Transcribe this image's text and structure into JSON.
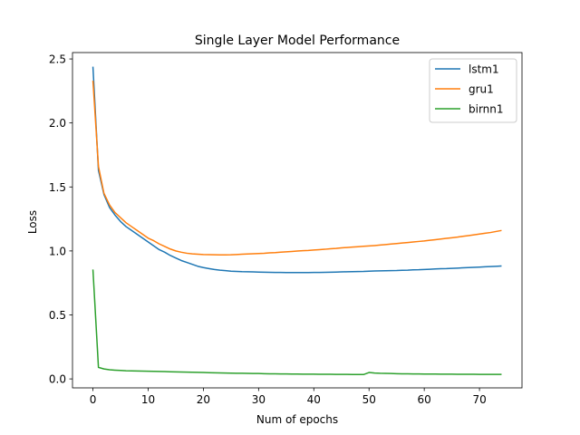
{
  "chart_data": {
    "type": "line",
    "title": "Single Layer Model Performance",
    "xlabel": "Num of epochs",
    "ylabel": "Loss",
    "xlim": [
      -3.7,
      77.7
    ],
    "ylim": [
      -0.07,
      2.55
    ],
    "xticks": [
      0,
      10,
      20,
      30,
      40,
      50,
      60,
      70
    ],
    "xtick_labels": [
      "0",
      "10",
      "20",
      "30",
      "40",
      "50",
      "60",
      "70"
    ],
    "yticks": [
      0.0,
      0.5,
      1.0,
      1.5,
      2.0,
      2.5
    ],
    "ytick_labels": [
      "0.0",
      "0.5",
      "1.0",
      "1.5",
      "2.0",
      "2.5"
    ],
    "grid": false,
    "legend_position": "top-right",
    "series": [
      {
        "name": "lstm1",
        "color": "#1f77b4",
        "x": [
          0,
          1,
          2,
          3,
          4,
          5,
          6,
          7,
          8,
          9,
          10,
          11,
          12,
          13,
          14,
          15,
          16,
          17,
          18,
          19,
          20,
          21,
          22,
          23,
          24,
          25,
          26,
          27,
          28,
          29,
          30,
          31,
          32,
          33,
          34,
          35,
          36,
          37,
          38,
          39,
          40,
          41,
          42,
          43,
          44,
          45,
          46,
          47,
          48,
          49,
          50,
          51,
          52,
          53,
          54,
          55,
          56,
          57,
          58,
          59,
          60,
          61,
          62,
          63,
          64,
          65,
          66,
          67,
          68,
          69,
          70,
          71,
          72,
          73,
          74
        ],
        "y": [
          2.44,
          1.63,
          1.44,
          1.34,
          1.28,
          1.23,
          1.19,
          1.16,
          1.13,
          1.1,
          1.07,
          1.04,
          1.01,
          0.99,
          0.965,
          0.945,
          0.925,
          0.91,
          0.895,
          0.88,
          0.87,
          0.862,
          0.855,
          0.85,
          0.846,
          0.842,
          0.84,
          0.838,
          0.837,
          0.836,
          0.835,
          0.834,
          0.833,
          0.832,
          0.832,
          0.831,
          0.831,
          0.831,
          0.831,
          0.831,
          0.832,
          0.832,
          0.833,
          0.834,
          0.835,
          0.836,
          0.837,
          0.838,
          0.839,
          0.84,
          0.842,
          0.843,
          0.844,
          0.845,
          0.846,
          0.847,
          0.849,
          0.85,
          0.852,
          0.853,
          0.855,
          0.857,
          0.859,
          0.861,
          0.862,
          0.864,
          0.866,
          0.868,
          0.87,
          0.872,
          0.874,
          0.876,
          0.878,
          0.88,
          0.882
        ]
      },
      {
        "name": "gru1",
        "color": "#ff7f0e",
        "x": [
          0,
          1,
          2,
          3,
          4,
          5,
          6,
          7,
          8,
          9,
          10,
          11,
          12,
          13,
          14,
          15,
          16,
          17,
          18,
          19,
          20,
          21,
          22,
          23,
          24,
          25,
          26,
          27,
          28,
          29,
          30,
          31,
          32,
          33,
          34,
          35,
          36,
          37,
          38,
          39,
          40,
          41,
          42,
          43,
          44,
          45,
          46,
          47,
          48,
          49,
          50,
          51,
          52,
          53,
          54,
          55,
          56,
          57,
          58,
          59,
          60,
          61,
          62,
          63,
          64,
          65,
          66,
          67,
          68,
          69,
          70,
          71,
          72,
          73,
          74
        ],
        "y": [
          2.33,
          1.66,
          1.45,
          1.36,
          1.3,
          1.26,
          1.22,
          1.19,
          1.16,
          1.13,
          1.1,
          1.08,
          1.055,
          1.035,
          1.015,
          1.0,
          0.99,
          0.982,
          0.977,
          0.974,
          0.972,
          0.971,
          0.97,
          0.969,
          0.969,
          0.97,
          0.972,
          0.974,
          0.976,
          0.978,
          0.98,
          0.982,
          0.985,
          0.987,
          0.99,
          0.993,
          0.996,
          0.999,
          1.002,
          1.004,
          1.007,
          1.01,
          1.013,
          1.017,
          1.02,
          1.024,
          1.027,
          1.03,
          1.033,
          1.036,
          1.039,
          1.042,
          1.046,
          1.05,
          1.054,
          1.058,
          1.062,
          1.066,
          1.07,
          1.074,
          1.078,
          1.083,
          1.088,
          1.093,
          1.098,
          1.103,
          1.108,
          1.114,
          1.12,
          1.126,
          1.132,
          1.138,
          1.144,
          1.152,
          1.16
        ]
      },
      {
        "name": "birnn1",
        "color": "#2ca02c",
        "x": [
          0,
          1,
          2,
          3,
          4,
          5,
          6,
          7,
          8,
          9,
          10,
          11,
          12,
          13,
          14,
          15,
          16,
          17,
          18,
          19,
          20,
          21,
          22,
          23,
          24,
          25,
          26,
          27,
          28,
          29,
          30,
          31,
          32,
          33,
          34,
          35,
          36,
          37,
          38,
          39,
          40,
          41,
          42,
          43,
          44,
          45,
          46,
          47,
          48,
          49,
          50,
          51,
          52,
          53,
          54,
          55,
          56,
          57,
          58,
          59,
          60,
          61,
          62,
          63,
          64,
          65,
          66,
          67,
          68,
          69,
          70,
          71,
          72,
          73,
          74
        ],
        "y": [
          0.855,
          0.09,
          0.078,
          0.072,
          0.068,
          0.066,
          0.064,
          0.063,
          0.062,
          0.061,
          0.06,
          0.059,
          0.058,
          0.057,
          0.056,
          0.055,
          0.054,
          0.053,
          0.052,
          0.051,
          0.05,
          0.049,
          0.048,
          0.047,
          0.046,
          0.045,
          0.044,
          0.044,
          0.043,
          0.042,
          0.042,
          0.041,
          0.04,
          0.04,
          0.039,
          0.039,
          0.038,
          0.038,
          0.037,
          0.037,
          0.037,
          0.036,
          0.036,
          0.036,
          0.035,
          0.035,
          0.035,
          0.034,
          0.034,
          0.034,
          0.05,
          0.046,
          0.044,
          0.043,
          0.042,
          0.041,
          0.04,
          0.04,
          0.039,
          0.039,
          0.038,
          0.038,
          0.038,
          0.037,
          0.037,
          0.037,
          0.036,
          0.036,
          0.036,
          0.036,
          0.035,
          0.035,
          0.035,
          0.035,
          0.035
        ]
      }
    ]
  }
}
